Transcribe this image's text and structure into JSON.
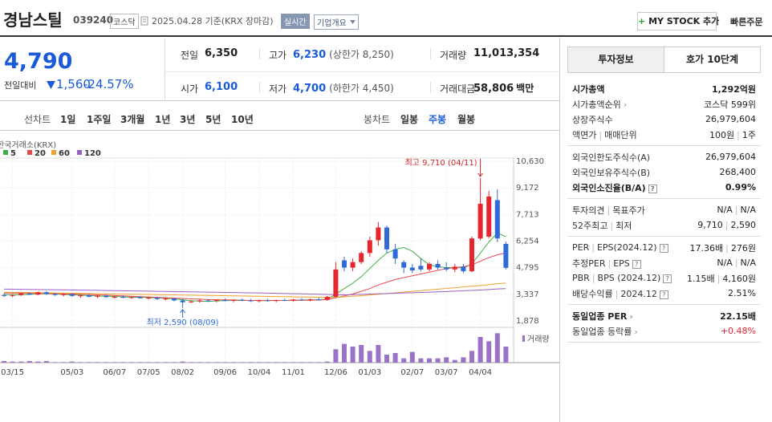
{
  "header": {
    "name": "경남스틸",
    "code": "039240",
    "market": "코스닥",
    "date": "2025.04.28 기준(KRX 장마감)",
    "realtime": "실시간",
    "overview": "기업개요",
    "mystock": "MY STOCK 추가",
    "quick_order": "빠른주문"
  },
  "price": {
    "current": "4,790",
    "change_label": "전일대비",
    "change": "1,560",
    "change_rate": "-24.57%",
    "color": "#1a5ad8"
  },
  "summary": [
    {
      "label": "전일",
      "value": "6,350",
      "color": "#222"
    },
    {
      "label": "고가",
      "value": "6,230",
      "note": "(상한가 8,250)",
      "color": "#1a5ad8"
    },
    {
      "label": "거래량",
      "value": "11,013,354",
      "color": "#222"
    },
    {
      "label": "시가",
      "value": "6,100",
      "color": "#1a5ad8"
    },
    {
      "label": "저가",
      "value": "4,700",
      "note": "(하한가 4,450)",
      "color": "#1a5ad8"
    },
    {
      "label": "거래대금",
      "value": "58,806",
      "unit": "백만",
      "color": "#222"
    }
  ],
  "chart_tabs": {
    "line_label": "선차트",
    "line_periods": [
      "1일",
      "1주일",
      "3개월",
      "1년",
      "3년",
      "5년",
      "10년"
    ],
    "candle_label": "봉차트",
    "candle_periods": [
      "일봉",
      "주봉",
      "월봉"
    ],
    "active": "주봉"
  },
  "chart_data": {
    "type": "candlestick",
    "source": "한국거래소(KRX)",
    "categories": [
      null,
      "03/15",
      null,
      null,
      null,
      null,
      null,
      null,
      "05/03",
      null,
      null,
      null,
      null,
      "06/07",
      null,
      null,
      null,
      "07/05",
      null,
      null,
      null,
      "08/02",
      null,
      null,
      null,
      null,
      "09/06",
      null,
      null,
      null,
      "10/04",
      null,
      null,
      null,
      "11/01",
      null,
      null,
      null,
      null,
      "12/06",
      null,
      null,
      null,
      "01/03",
      null,
      null,
      null,
      null,
      "02/07",
      null,
      null,
      null,
      "03/07",
      null,
      null,
      null,
      "04/04",
      null,
      null,
      null
    ],
    "open": [
      3300,
      3250,
      3300,
      3380,
      3320,
      3450,
      3350,
      3300,
      3340,
      3250,
      3280,
      3200,
      3260,
      3180,
      3200,
      3150,
      3180,
      3120,
      3150,
      3080,
      3100,
      3000,
      2900,
      2950,
      3000,
      2980,
      3020,
      2980,
      3040,
      3000,
      2960,
      3010,
      2970,
      3020,
      3000,
      3050,
      3010,
      3060,
      3030,
      3200,
      5200,
      4800,
      5100,
      5600,
      6300,
      7000,
      5800,
      5100,
      4800,
      4900,
      4700,
      5000,
      4800,
      4700,
      4850,
      4600,
      6400,
      6500,
      8500,
      6100
    ],
    "high": [
      3380,
      3350,
      3420,
      3450,
      3480,
      3500,
      3420,
      3380,
      3400,
      3330,
      3350,
      3300,
      3320,
      3250,
      3280,
      3220,
      3250,
      3200,
      3200,
      3150,
      3150,
      3080,
      3000,
      3050,
      3080,
      3050,
      3100,
      3060,
      3100,
      3080,
      3050,
      3080,
      3050,
      3100,
      3080,
      3120,
      3100,
      3150,
      3250,
      5100,
      5400,
      5300,
      5700,
      6500,
      7300,
      7100,
      6100,
      5200,
      5000,
      5300,
      5100,
      5200,
      5100,
      5000,
      5000,
      6500,
      9710,
      9000,
      9100,
      6230
    ],
    "low": [
      3200,
      3180,
      3250,
      3300,
      3280,
      3300,
      3250,
      3220,
      3200,
      3150,
      3180,
      3120,
      3150,
      3100,
      3120,
      3080,
      3100,
      3050,
      3020,
      3000,
      2950,
      2590,
      2850,
      2880,
      2920,
      2900,
      2950,
      2900,
      2960,
      2920,
      2900,
      2940,
      2900,
      2960,
      2930,
      2980,
      2950,
      3000,
      2980,
      3150,
      4600,
      4600,
      5000,
      5400,
      6000,
      5600,
      5000,
      4500,
      4500,
      4600,
      4600,
      4700,
      4600,
      4550,
      4500,
      4550,
      6300,
      6400,
      6200,
      4700
    ],
    "close": [
      3250,
      3300,
      3380,
      3320,
      3450,
      3350,
      3300,
      3340,
      3250,
      3280,
      3200,
      3260,
      3180,
      3200,
      3150,
      3180,
      3120,
      3150,
      3080,
      3100,
      3000,
      2900,
      2950,
      3000,
      2980,
      3020,
      2980,
      3040,
      3000,
      2960,
      3010,
      2970,
      3020,
      3000,
      3050,
      3010,
      3060,
      3030,
      3200,
      4700,
      4800,
      5100,
      5600,
      6300,
      7000,
      5800,
      5300,
      4800,
      4650,
      4700,
      5000,
      4800,
      4700,
      4850,
      4600,
      6400,
      8300,
      8700,
      6400,
      4790
    ],
    "up_color": "#e5262f",
    "down_color": "#2f6bd8",
    "moving_averages": [
      {
        "name": "5",
        "color": "#3fae49",
        "values": [
          3320,
          3300,
          3310,
          3330,
          3360,
          3370,
          3350,
          3330,
          3310,
          3290,
          3270,
          3250,
          3230,
          3220,
          3200,
          3180,
          3170,
          3160,
          3140,
          3120,
          3090,
          3040,
          2990,
          2960,
          2950,
          2970,
          2990,
          3000,
          3000,
          3000,
          2990,
          2990,
          3000,
          3000,
          3010,
          3020,
          3030,
          3040,
          3070,
          3350,
          3650,
          3950,
          4300,
          4750,
          5200,
          5600,
          5800,
          5900,
          5700,
          5300,
          4950,
          4850,
          4800,
          4800,
          4780,
          5000,
          5600,
          6200,
          6700,
          6500
        ]
      },
      {
        "name": "20",
        "color": "#e8474c",
        "values": [
          3400,
          3400,
          3395,
          3390,
          3385,
          3380,
          3370,
          3360,
          3350,
          3340,
          3330,
          3310,
          3290,
          3270,
          3250,
          3230,
          3210,
          3190,
          3170,
          3150,
          3130,
          3110,
          3090,
          3070,
          3050,
          3040,
          3030,
          3020,
          3010,
          3000,
          3000,
          3000,
          3000,
          3000,
          3000,
          3010,
          3010,
          3020,
          3050,
          3150,
          3250,
          3350,
          3500,
          3650,
          3850,
          4000,
          4150,
          4250,
          4350,
          4450,
          4550,
          4650,
          4750,
          4800,
          4850,
          4950,
          5150,
          5350,
          5500,
          5600
        ]
      },
      {
        "name": "60",
        "color": "#f0a030",
        "values": [
          3450,
          3445,
          3440,
          3432,
          3425,
          3418,
          3410,
          3402,
          3395,
          3388,
          3380,
          3372,
          3365,
          3358,
          3350,
          3342,
          3335,
          3328,
          3320,
          3312,
          3305,
          3298,
          3290,
          3282,
          3275,
          3268,
          3260,
          3252,
          3245,
          3238,
          3230,
          3222,
          3215,
          3208,
          3200,
          3192,
          3185,
          3175,
          3165,
          3170,
          3200,
          3230,
          3260,
          3300,
          3340,
          3380,
          3420,
          3460,
          3500,
          3540,
          3580,
          3620,
          3660,
          3700,
          3740,
          3780,
          3820,
          3870,
          3920,
          3950
        ]
      },
      {
        "name": "120",
        "color": "#9b5fc4",
        "values": [
          3620,
          3615,
          3610,
          3605,
          3600,
          3595,
          3590,
          3582,
          3575,
          3568,
          3560,
          3552,
          3545,
          3538,
          3530,
          3522,
          3515,
          3508,
          3500,
          3492,
          3485,
          3478,
          3470,
          3462,
          3455,
          3448,
          3440,
          3432,
          3425,
          3418,
          3410,
          3400,
          3390,
          3380,
          3370,
          3360,
          3350,
          3340,
          3330,
          3320,
          3310,
          3320,
          3335,
          3350,
          3365,
          3380,
          3395,
          3410,
          3425,
          3440,
          3455,
          3470,
          3490,
          3510,
          3530,
          3550,
          3570,
          3600,
          3630,
          3650
        ]
      }
    ],
    "volume_label": "거래량",
    "volume_color": "#9a73c9",
    "volume": [
      3,
      2,
      2,
      3,
      2,
      3,
      1,
      1,
      2,
      1,
      1,
      1,
      1,
      1,
      1,
      1,
      1,
      1,
      1,
      1,
      1,
      2,
      1,
      1,
      1,
      1,
      1,
      1,
      1,
      1,
      1,
      1,
      1,
      1,
      1,
      1,
      1,
      1,
      2,
      25,
      35,
      30,
      33,
      22,
      33,
      15,
      18,
      8,
      20,
      8,
      8,
      8,
      10,
      5,
      10,
      22,
      48,
      40,
      55,
      30
    ],
    "vlim": [
      0,
      60
    ],
    "ylim": [
      1658,
      10850
    ],
    "yticks": [
      {
        "value": 10630,
        "label": "10,630"
      },
      {
        "value": 9172,
        "label": "9,172"
      },
      {
        "value": 7713,
        "label": "7,713"
      },
      {
        "value": 6254,
        "label": "6,254"
      },
      {
        "value": 4795,
        "label": "4,795"
      },
      {
        "value": 3337,
        "label": "3,337"
      },
      {
        "value": 1878,
        "label": "1,878"
      }
    ],
    "grid": true,
    "annotations": [
      {
        "text": "최고 9,710 (04/11)",
        "color": "#d0262d"
      },
      {
        "text": "최저 2,590 (08/09)",
        "color": "#2f6bd8"
      }
    ]
  },
  "sidebar": {
    "tabs": [
      "투자정보",
      "호가 10단계"
    ],
    "groups": [
      [
        {
          "label": [
            "시가총액"
          ],
          "values": [
            "1,292억원"
          ],
          "strong": true
        },
        {
          "label": [
            "시가총액순위"
          ],
          "values": [
            "코스닥 599위"
          ],
          "link": true
        },
        {
          "label": [
            "상장주식수"
          ],
          "values": [
            "26,979,604"
          ]
        },
        {
          "label": [
            "액면가",
            "매매단위"
          ],
          "values": [
            "100원",
            "1주"
          ]
        }
      ],
      [
        {
          "label": [
            "외국인한도주식수(A)"
          ],
          "values": [
            "26,979,604"
          ]
        },
        {
          "label": [
            "외국인보유주식수(B)"
          ],
          "values": [
            "268,400"
          ]
        },
        {
          "label": [
            "외국인소진율(B/A)"
          ],
          "values": [
            "0.99%"
          ],
          "strong": true,
          "help": true
        }
      ],
      [
        {
          "label": [
            "투자의견",
            "목표주가"
          ],
          "values": [
            "N/A",
            "N/A"
          ]
        },
        {
          "label": [
            "52주최고",
            "최저"
          ],
          "values": [
            "9,710",
            "2,590"
          ]
        }
      ],
      [
        {
          "label": [
            "PER",
            "EPS(2024.12)"
          ],
          "values": [
            "17.36배",
            "276원"
          ],
          "help": true
        },
        {
          "label": [
            "추정PER",
            "EPS"
          ],
          "values": [
            "N/A",
            "N/A"
          ],
          "help": true
        },
        {
          "label": [
            "PBR",
            "BPS (2024.12)"
          ],
          "values": [
            "1.15배",
            "4,160원"
          ],
          "help": true
        },
        {
          "label": [
            "배당수익률",
            "2024.12"
          ],
          "values": [
            "2.51%"
          ],
          "help": true
        }
      ],
      [
        {
          "label": [
            "동일업종 PER"
          ],
          "values": [
            "22.15배"
          ],
          "strong": true,
          "link": true
        },
        {
          "label": [
            "동일업종 등락률"
          ],
          "values": [
            "+0.48%"
          ],
          "link": true,
          "color": "#e5262f"
        }
      ]
    ]
  }
}
